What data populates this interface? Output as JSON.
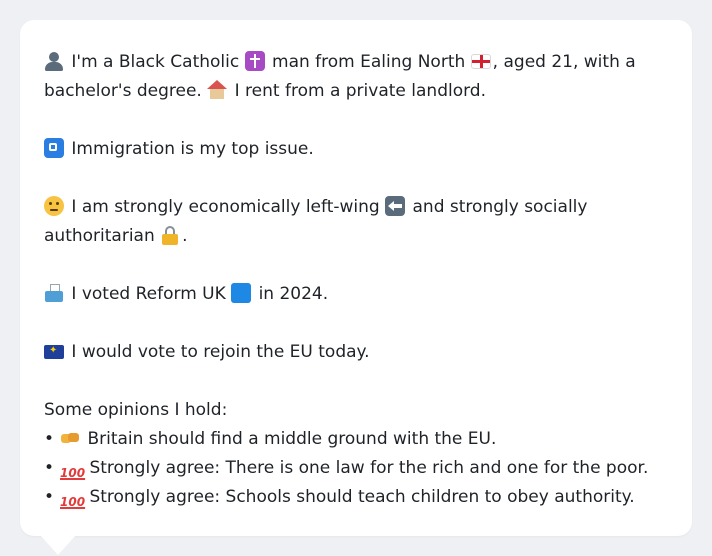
{
  "profile": {
    "intro_part1": "I'm a Black Catholic",
    "intro_part2": "man from Ealing North",
    "intro_part3": ", aged 21, with a bachelor's degree.",
    "intro_part4": "I rent from a private landlord.",
    "top_issue": "Immigration is my top issue.",
    "ideology_part1": "I am strongly economically left-wing",
    "ideology_part2": "and strongly socially authoritarian",
    "ideology_part3": ".",
    "vote_part1": "I voted Reform UK",
    "vote_part2": "in 2024.",
    "eu_vote": "I would vote to rejoin the EU today.",
    "opinions_heading": "Some opinions I hold:",
    "opinions": [
      {
        "bullet": "•",
        "icon": "handshake-icon",
        "text": "Britain should find a middle ground with the EU."
      },
      {
        "bullet": "•",
        "icon": "hundred-points-icon",
        "text": "Strongly agree: There is one law for the rich and one for the poor."
      },
      {
        "bullet": "•",
        "icon": "hundred-points-icon",
        "text": "Strongly agree: Schools should teach children to obey authority."
      }
    ],
    "hundred_label": "100"
  },
  "icons": {
    "person": "person-silhouette-icon",
    "cross": "latin-cross-icon",
    "england_flag": "england-flag-icon",
    "house": "house-icon",
    "passport_control": "passport-control-icon",
    "thinking": "thinking-face-icon",
    "left_arrow": "left-arrow-icon",
    "lock": "lock-icon",
    "ballot": "ballot-box-icon",
    "blue_square": "blue-square-icon",
    "eu_flag": "eu-flag-icon"
  },
  "colors": {
    "background": "#eef0f3",
    "card": "#ffffff",
    "text": "#1f2328"
  }
}
